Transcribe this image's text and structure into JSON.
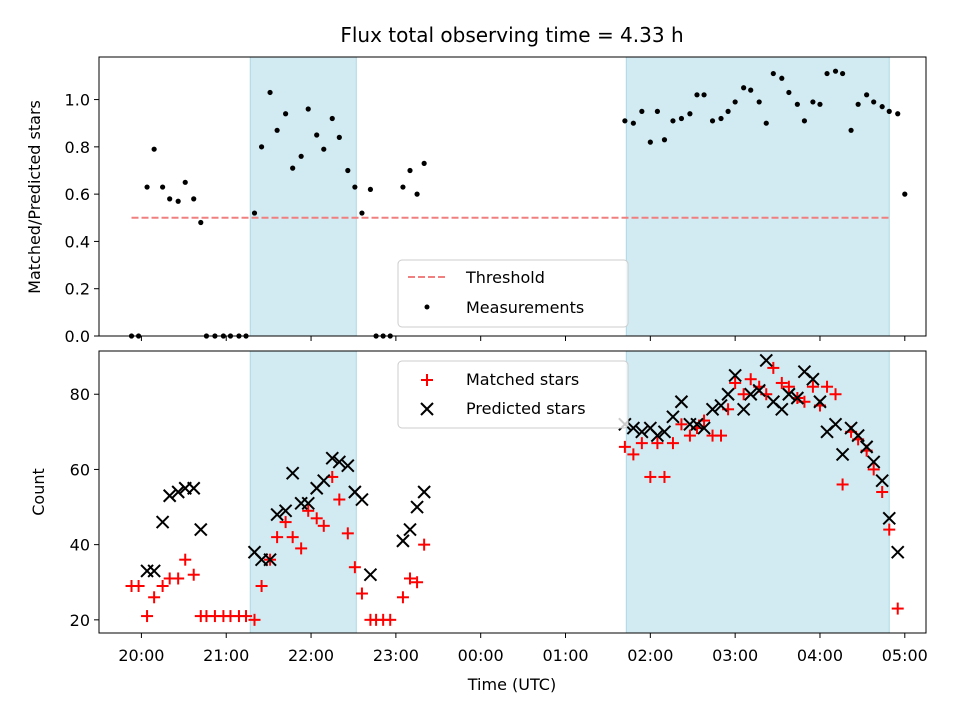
{
  "chart_data": [
    {
      "type": "scatter",
      "title": "Flux total observing time = 4.33 h",
      "xlabel": "",
      "ylabel": "Matched/Predicted stars",
      "ylim": [
        0,
        1.18
      ],
      "yticks": [
        "0.0",
        "0.2",
        "0.4",
        "0.6",
        "0.8",
        "1.0"
      ],
      "xlim": [
        "19:30",
        "05:15"
      ],
      "grid": false,
      "legend": "lower-center",
      "shaded_intervals": [
        [
          "21:17",
          "22:32"
        ],
        [
          "01:43",
          "04:49"
        ]
      ],
      "threshold": {
        "name": "Threshold",
        "value": 0.5,
        "from": "19:53",
        "to": "04:49",
        "color": "#f08080"
      },
      "series": [
        {
          "name": "Measurements",
          "color": "#000000",
          "points": [
            [
              "19:53",
              0.0
            ],
            [
              "19:58",
              0.0
            ],
            [
              "20:04",
              0.63
            ],
            [
              "20:09",
              0.79
            ],
            [
              "20:15",
              0.63
            ],
            [
              "20:20",
              0.58
            ],
            [
              "20:26",
              0.57
            ],
            [
              "20:31",
              0.65
            ],
            [
              "20:37",
              0.58
            ],
            [
              "20:42",
              0.48
            ],
            [
              "20:46",
              0.0
            ],
            [
              "20:52",
              0.0
            ],
            [
              "20:58",
              0.0
            ],
            [
              "21:03",
              0.0
            ],
            [
              "21:09",
              0.0
            ],
            [
              "21:14",
              0.0
            ],
            [
              "21:20",
              0.52
            ],
            [
              "21:25",
              0.8
            ],
            [
              "21:31",
              1.03
            ],
            [
              "21:36",
              0.87
            ],
            [
              "21:42",
              0.94
            ],
            [
              "21:47",
              0.71
            ],
            [
              "21:53",
              0.76
            ],
            [
              "21:58",
              0.96
            ],
            [
              "22:04",
              0.85
            ],
            [
              "22:09",
              0.79
            ],
            [
              "22:15",
              0.92
            ],
            [
              "22:20",
              0.84
            ],
            [
              "22:26",
              0.7
            ],
            [
              "22:31",
              0.63
            ],
            [
              "22:36",
              0.52
            ],
            [
              "22:42",
              0.62
            ],
            [
              "22:46",
              0.0
            ],
            [
              "22:51",
              0.0
            ],
            [
              "22:56",
              0.0
            ],
            [
              "23:05",
              0.63
            ],
            [
              "23:10",
              0.7
            ],
            [
              "23:15",
              0.6
            ],
            [
              "23:20",
              0.73
            ],
            [
              "01:42",
              0.91
            ],
            [
              "01:48",
              0.9
            ],
            [
              "01:54",
              0.95
            ],
            [
              "02:00",
              0.82
            ],
            [
              "02:05",
              0.95
            ],
            [
              "02:10",
              0.83
            ],
            [
              "02:16",
              0.91
            ],
            [
              "02:22",
              0.92
            ],
            [
              "02:28",
              0.94
            ],
            [
              "02:33",
              1.02
            ],
            [
              "02:38",
              1.02
            ],
            [
              "02:44",
              0.91
            ],
            [
              "02:50",
              0.92
            ],
            [
              "02:55",
              0.95
            ],
            [
              "03:00",
              0.99
            ],
            [
              "03:06",
              1.05
            ],
            [
              "03:11",
              1.04
            ],
            [
              "03:17",
              0.99
            ],
            [
              "03:22",
              0.9
            ],
            [
              "03:27",
              1.11
            ],
            [
              "03:33",
              1.09
            ],
            [
              "03:38",
              1.03
            ],
            [
              "03:44",
              0.98
            ],
            [
              "03:49",
              0.91
            ],
            [
              "03:55",
              0.99
            ],
            [
              "04:00",
              0.98
            ],
            [
              "04:05",
              1.11
            ],
            [
              "04:11",
              1.12
            ],
            [
              "04:16",
              1.11
            ],
            [
              "04:22",
              0.87
            ],
            [
              "04:27",
              0.98
            ],
            [
              "04:33",
              1.02
            ],
            [
              "04:38",
              0.99
            ],
            [
              "04:44",
              0.97
            ],
            [
              "04:49",
              0.95
            ],
            [
              "04:55",
              0.94
            ],
            [
              "05:00",
              0.6
            ]
          ]
        }
      ]
    },
    {
      "type": "scatter",
      "title": "",
      "xlabel": "Time (UTC)",
      "ylabel": "Count",
      "ylim": [
        16.5,
        91.5
      ],
      "yticks": [
        "20",
        "40",
        "60",
        "80"
      ],
      "xticks": [
        "20:00",
        "21:00",
        "22:00",
        "23:00",
        "00:00",
        "01:00",
        "02:00",
        "03:00",
        "04:00",
        "05:00"
      ],
      "xlim": [
        "19:30",
        "05:15"
      ],
      "grid": false,
      "legend": "upper-center",
      "shaded_intervals": [
        [
          "21:17",
          "22:32"
        ],
        [
          "01:43",
          "04:49"
        ]
      ],
      "series": [
        {
          "name": "Matched stars",
          "marker": "plus",
          "color": "#ff0000",
          "points": [
            [
              "19:53",
              29
            ],
            [
              "19:58",
              29
            ],
            [
              "20:04",
              21
            ],
            [
              "20:09",
              26
            ],
            [
              "20:15",
              29
            ],
            [
              "20:20",
              31
            ],
            [
              "20:26",
              31
            ],
            [
              "20:31",
              36
            ],
            [
              "20:37",
              32
            ],
            [
              "20:42",
              21
            ],
            [
              "20:46",
              21
            ],
            [
              "20:52",
              21
            ],
            [
              "20:58",
              21
            ],
            [
              "21:03",
              21
            ],
            [
              "21:09",
              21
            ],
            [
              "21:14",
              21
            ],
            [
              "21:20",
              20
            ],
            [
              "21:25",
              29
            ],
            [
              "21:31",
              36
            ],
            [
              "21:36",
              42
            ],
            [
              "21:42",
              46
            ],
            [
              "21:47",
              42
            ],
            [
              "21:53",
              39
            ],
            [
              "21:58",
              49
            ],
            [
              "22:04",
              47
            ],
            [
              "22:09",
              45
            ],
            [
              "22:15",
              58
            ],
            [
              "22:20",
              52
            ],
            [
              "22:26",
              43
            ],
            [
              "22:31",
              34
            ],
            [
              "22:36",
              27
            ],
            [
              "22:42",
              20
            ],
            [
              "22:46",
              20
            ],
            [
              "22:51",
              20
            ],
            [
              "22:56",
              20
            ],
            [
              "23:05",
              26
            ],
            [
              "23:10",
              31
            ],
            [
              "23:15",
              30
            ],
            [
              "23:20",
              40
            ],
            [
              "01:42",
              66
            ],
            [
              "01:48",
              64
            ],
            [
              "01:54",
              67
            ],
            [
              "02:00",
              58
            ],
            [
              "02:05",
              67
            ],
            [
              "02:10",
              58
            ],
            [
              "02:16",
              67
            ],
            [
              "02:22",
              72
            ],
            [
              "02:28",
              69
            ],
            [
              "02:33",
              71
            ],
            [
              "02:38",
              73
            ],
            [
              "02:44",
              69
            ],
            [
              "02:50",
              69
            ],
            [
              "02:55",
              76
            ],
            [
              "03:00",
              83
            ],
            [
              "03:06",
              80
            ],
            [
              "03:11",
              84
            ],
            [
              "03:17",
              82
            ],
            [
              "03:22",
              80
            ],
            [
              "03:27",
              87
            ],
            [
              "03:33",
              83
            ],
            [
              "03:38",
              82
            ],
            [
              "03:44",
              79
            ],
            [
              "03:49",
              78
            ],
            [
              "03:55",
              82
            ],
            [
              "04:00",
              77
            ],
            [
              "04:05",
              82
            ],
            [
              "04:11",
              80
            ],
            [
              "04:16",
              56
            ],
            [
              "04:22",
              70
            ],
            [
              "04:27",
              68
            ],
            [
              "04:33",
              65
            ],
            [
              "04:38",
              60
            ],
            [
              "04:44",
              54
            ],
            [
              "04:49",
              44
            ],
            [
              "04:55",
              23
            ]
          ]
        },
        {
          "name": "Predicted stars",
          "marker": "x",
          "color": "#000000",
          "points": [
            [
              "20:04",
              33
            ],
            [
              "20:09",
              33
            ],
            [
              "20:15",
              46
            ],
            [
              "20:20",
              53
            ],
            [
              "20:26",
              54
            ],
            [
              "20:31",
              55
            ],
            [
              "20:37",
              55
            ],
            [
              "20:42",
              44
            ],
            [
              "21:20",
              38
            ],
            [
              "21:25",
              36
            ],
            [
              "21:31",
              36
            ],
            [
              "21:36",
              48
            ],
            [
              "21:42",
              49
            ],
            [
              "21:47",
              59
            ],
            [
              "21:53",
              51
            ],
            [
              "21:58",
              51
            ],
            [
              "22:04",
              55
            ],
            [
              "22:09",
              57
            ],
            [
              "22:15",
              63
            ],
            [
              "22:20",
              62
            ],
            [
              "22:26",
              61
            ],
            [
              "22:31",
              54
            ],
            [
              "22:36",
              52
            ],
            [
              "22:42",
              32
            ],
            [
              "23:05",
              41
            ],
            [
              "23:10",
              44
            ],
            [
              "23:15",
              50
            ],
            [
              "23:20",
              54
            ],
            [
              "01:42",
              72
            ],
            [
              "01:48",
              71
            ],
            [
              "01:54",
              70
            ],
            [
              "02:00",
              71
            ],
            [
              "02:05",
              69
            ],
            [
              "02:10",
              70
            ],
            [
              "02:16",
              74
            ],
            [
              "02:22",
              78
            ],
            [
              "02:28",
              72
            ],
            [
              "02:33",
              72
            ],
            [
              "02:38",
              71
            ],
            [
              "02:44",
              76
            ],
            [
              "02:50",
              77
            ],
            [
              "02:55",
              80
            ],
            [
              "03:00",
              85
            ],
            [
              "03:06",
              76
            ],
            [
              "03:11",
              80
            ],
            [
              "03:17",
              81
            ],
            [
              "03:22",
              89
            ],
            [
              "03:27",
              78
            ],
            [
              "03:33",
              76
            ],
            [
              "03:38",
              80
            ],
            [
              "03:44",
              79
            ],
            [
              "03:49",
              86
            ],
            [
              "03:55",
              84
            ],
            [
              "04:00",
              78
            ],
            [
              "04:05",
              70
            ],
            [
              "04:11",
              72
            ],
            [
              "04:16",
              64
            ],
            [
              "04:22",
              71
            ],
            [
              "04:27",
              69
            ],
            [
              "04:33",
              66
            ],
            [
              "04:38",
              62
            ],
            [
              "04:44",
              57
            ],
            [
              "04:49",
              47
            ],
            [
              "04:55",
              38
            ]
          ]
        }
      ]
    }
  ],
  "colors": {
    "shade": "#add8e6",
    "threshold": "#f08080",
    "matched": "#ff0000",
    "predicted": "#000000"
  }
}
